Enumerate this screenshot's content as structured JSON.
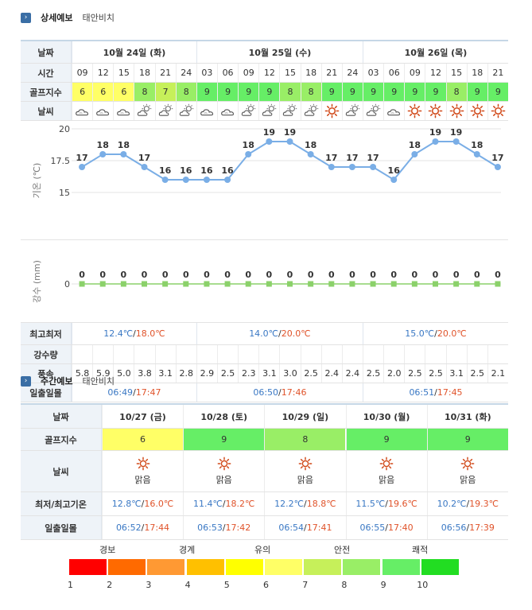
{
  "sections": {
    "detail_title": "상세예보",
    "detail_location": "태안비치",
    "weekly_title": "주간예보",
    "weekly_location": "태안비치",
    "chevron": "›"
  },
  "detail": {
    "labels": {
      "date": "날짜",
      "time": "시간",
      "golf": "골프지수",
      "weather": "날씨",
      "temp_axis": "기온 (℃)",
      "rain_axis": "강수 (mm)",
      "minmax": "최고최저",
      "rainfall": "강수량",
      "wind": "풍속",
      "sun": "일출일몰"
    },
    "days": [
      {
        "label": "10월 24일 (화)",
        "min": "12.4℃",
        "max": "18.0℃",
        "sunrise": "06:49",
        "sunset": "17:47"
      },
      {
        "label": "10월 25일 (수)",
        "min": "14.0℃",
        "max": "20.0℃",
        "sunrise": "06:50",
        "sunset": "17:46"
      },
      {
        "label": "10월 26일 (목)",
        "min": "15.0℃",
        "max": "20.0℃",
        "sunrise": "06:51",
        "sunset": "17:45"
      }
    ],
    "times": [
      "09",
      "12",
      "15",
      "18",
      "21",
      "24",
      "03",
      "06",
      "09",
      "12",
      "15",
      "18",
      "21",
      "24",
      "03",
      "06",
      "09",
      "12",
      "15",
      "18",
      "21"
    ],
    "golf": [
      6,
      6,
      6,
      8,
      7,
      8,
      9,
      9,
      9,
      9,
      8,
      8,
      9,
      9,
      9,
      9,
      9,
      9,
      8,
      9,
      9
    ],
    "weather_icons": [
      "cloud-icon",
      "cloud-icon",
      "cloud-icon",
      "partly-cloudy-icon",
      "partly-cloudy-icon",
      "partly-cloudy-icon",
      "cloud-icon",
      "cloud-icon",
      "partly-cloudy-icon",
      "partly-cloudy-icon",
      "partly-cloudy-icon",
      "partly-cloudy-icon",
      "sun-icon",
      "partly-cloudy-icon",
      "partly-cloudy-icon",
      "cloud-icon",
      "sun-icon",
      "sun-icon",
      "sun-icon",
      "sun-icon",
      "sun-icon"
    ],
    "wind": [
      "5.8",
      "5.9",
      "5.0",
      "3.8",
      "3.1",
      "2.8",
      "2.9",
      "2.5",
      "2.3",
      "3.1",
      "3.0",
      "2.5",
      "2.4",
      "2.4",
      "2.5",
      "2.0",
      "2.5",
      "2.5",
      "3.1",
      "2.5",
      "2.1"
    ],
    "separator": "/"
  },
  "chart_data": [
    {
      "type": "line",
      "title": "",
      "ylabel": "기온 (℃)",
      "ylim": [
        15,
        20
      ],
      "yticks": [
        "20",
        "17.5",
        "15"
      ],
      "x": [
        "09",
        "12",
        "15",
        "18",
        "21",
        "24",
        "03",
        "06",
        "09",
        "12",
        "15",
        "18",
        "21",
        "24",
        "03",
        "06",
        "09",
        "12",
        "15",
        "18",
        "21"
      ],
      "values": [
        17,
        18,
        18,
        17,
        16,
        16,
        16,
        16,
        18,
        19,
        19,
        18,
        17,
        17,
        17,
        16,
        18,
        19,
        19,
        18,
        17
      ],
      "color": "#7aaee6",
      "grid": true
    },
    {
      "type": "line",
      "title": "",
      "ylabel": "강수 (mm)",
      "yticks": [
        "0"
      ],
      "x": [
        "09",
        "12",
        "15",
        "18",
        "21",
        "24",
        "03",
        "06",
        "09",
        "12",
        "15",
        "18",
        "21",
        "24",
        "03",
        "06",
        "09",
        "12",
        "15",
        "18",
        "21"
      ],
      "values": [
        0,
        0,
        0,
        0,
        0,
        0,
        0,
        0,
        0,
        0,
        0,
        0,
        0,
        0,
        0,
        0,
        0,
        0,
        0,
        0,
        0
      ],
      "color": "#8bd16a",
      "grid": true
    }
  ],
  "weekly": {
    "labels": {
      "date": "날짜",
      "golf": "골프지수",
      "weather": "날씨",
      "minmax": "최저/최고기온",
      "sun": "일출일몰"
    },
    "separator": "/",
    "days": [
      {
        "date": "10/27 (금)",
        "golf": "6",
        "golf_level": 6,
        "weather": "맑음",
        "icon": "sun-icon",
        "min": "12.8℃",
        "max": "16.0℃",
        "sunrise": "06:52",
        "sunset": "17:44"
      },
      {
        "date": "10/28 (토)",
        "golf": "9",
        "golf_level": 9,
        "weather": "맑음",
        "icon": "sun-icon",
        "min": "11.4℃",
        "max": "18.2℃",
        "sunrise": "06:53",
        "sunset": "17:42"
      },
      {
        "date": "10/29 (일)",
        "golf": "8",
        "golf_level": 8,
        "weather": "맑음",
        "icon": "sun-icon",
        "min": "12.2℃",
        "max": "18.8℃",
        "sunrise": "06:54",
        "sunset": "17:41"
      },
      {
        "date": "10/30 (월)",
        "golf": "9",
        "golf_level": 9,
        "weather": "맑음",
        "icon": "sun-icon",
        "min": "11.5℃",
        "max": "19.6℃",
        "sunrise": "06:55",
        "sunset": "17:40"
      },
      {
        "date": "10/31 (화)",
        "golf": "9",
        "golf_level": 9,
        "weather": "맑음",
        "icon": "sun-icon",
        "min": "10.2℃",
        "max": "19.3℃",
        "sunrise": "06:56",
        "sunset": "17:39"
      }
    ]
  },
  "legend": {
    "categories": [
      "경보",
      "경계",
      "유의",
      "안전",
      "쾌적"
    ],
    "numbers": [
      "1",
      "2",
      "3",
      "4",
      "5",
      "6",
      "7",
      "8",
      "9",
      "10"
    ],
    "colors": [
      "#ff0000",
      "#ff6a00",
      "#ff9933",
      "#ffc000",
      "#ffff00",
      "#ffff66",
      "#c6f05a",
      "#99ee66",
      "#66ee66",
      "#22dd22"
    ]
  },
  "colors": {
    "accent": "#3a6ea5",
    "low": "#3a78c4",
    "high": "#e0532a",
    "sun": "#d14a1a"
  }
}
